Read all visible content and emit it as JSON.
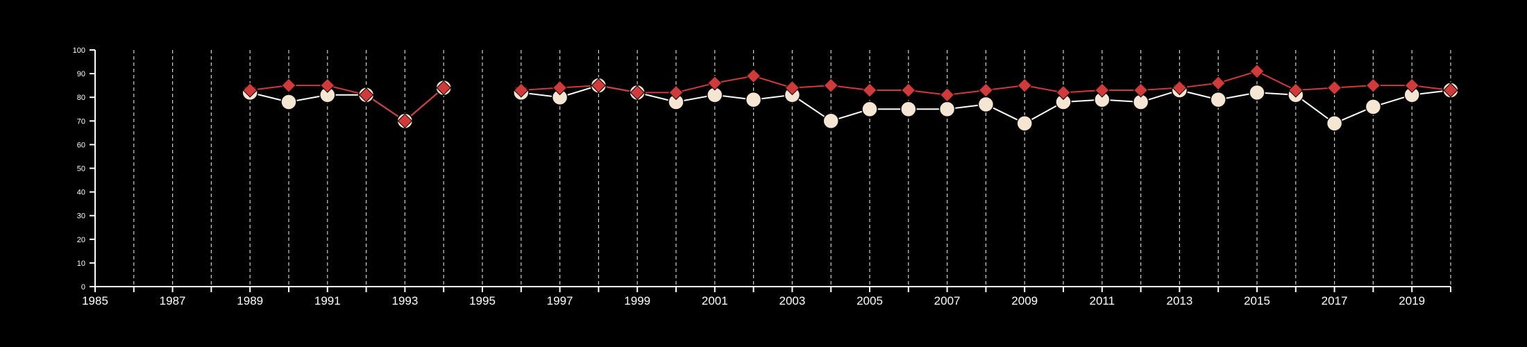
{
  "chart_data": {
    "type": "line",
    "title": "",
    "xlabel": "",
    "ylabel": "",
    "xlim": [
      1985,
      2020
    ],
    "ylim": [
      0,
      100
    ],
    "x_ticks": [
      1985,
      1987,
      1989,
      1991,
      1993,
      1995,
      1997,
      1999,
      2001,
      2003,
      2005,
      2007,
      2009,
      2011,
      2013,
      2015,
      2017,
      2019
    ],
    "x_tick_labels": [
      "1985",
      "1987",
      "1989",
      "1991",
      "1993",
      "1995",
      "1997",
      "1999",
      "2001",
      "2003",
      "2005",
      "2007",
      "2009",
      "2011",
      "2013",
      "2015",
      "2017",
      "2019"
    ],
    "y_ticks": [
      0,
      10,
      20,
      30,
      40,
      50,
      60,
      70,
      80,
      90,
      100
    ],
    "y_tick_labels": [
      "0",
      "10",
      "20",
      "30",
      "40",
      "50",
      "60",
      "70",
      "80",
      "90",
      "100"
    ],
    "vertical_dashed_gridlines_every_year": true,
    "legend": false,
    "series": [
      {
        "marker": "circle",
        "color": "#f5e6d3",
        "line_color": "#ffffff",
        "points": [
          {
            "x": 1989,
            "y": 82
          },
          {
            "x": 1990,
            "y": 78
          },
          {
            "x": 1991,
            "y": 81
          },
          {
            "x": 1992,
            "y": 81
          },
          {
            "x": 1993,
            "y": 70
          },
          {
            "x": 1994,
            "y": 84
          },
          {
            "x": 1996,
            "y": 82
          },
          {
            "x": 1997,
            "y": 80
          },
          {
            "x": 1998,
            "y": 85
          },
          {
            "x": 1999,
            "y": 82
          },
          {
            "x": 2000,
            "y": 78
          },
          {
            "x": 2001,
            "y": 81
          },
          {
            "x": 2002,
            "y": 79
          },
          {
            "x": 2003,
            "y": 81
          },
          {
            "x": 2004,
            "y": 70
          },
          {
            "x": 2005,
            "y": 75
          },
          {
            "x": 2006,
            "y": 75
          },
          {
            "x": 2007,
            "y": 75
          },
          {
            "x": 2008,
            "y": 77
          },
          {
            "x": 2009,
            "y": 69
          },
          {
            "x": 2010,
            "y": 78
          },
          {
            "x": 2011,
            "y": 79
          },
          {
            "x": 2012,
            "y": 78
          },
          {
            "x": 2013,
            "y": 83
          },
          {
            "x": 2014,
            "y": 79
          },
          {
            "x": 2015,
            "y": 82
          },
          {
            "x": 2016,
            "y": 81
          },
          {
            "x": 2017,
            "y": 69
          },
          {
            "x": 2018,
            "y": 76
          },
          {
            "x": 2019,
            "y": 81
          },
          {
            "x": 2020,
            "y": 83
          }
        ]
      },
      {
        "marker": "diamond",
        "color": "#d03a3a",
        "line_color": "#d03a3a",
        "points": [
          {
            "x": 1989,
            "y": 83
          },
          {
            "x": 1990,
            "y": 85
          },
          {
            "x": 1991,
            "y": 85
          },
          {
            "x": 1992,
            "y": 81
          },
          {
            "x": 1993,
            "y": 70
          },
          {
            "x": 1994,
            "y": 84
          },
          {
            "x": 1996,
            "y": 83
          },
          {
            "x": 1997,
            "y": 84
          },
          {
            "x": 1998,
            "y": 85
          },
          {
            "x": 1999,
            "y": 82
          },
          {
            "x": 2000,
            "y": 82
          },
          {
            "x": 2001,
            "y": 86
          },
          {
            "x": 2002,
            "y": 89
          },
          {
            "x": 2003,
            "y": 84
          },
          {
            "x": 2004,
            "y": 85
          },
          {
            "x": 2005,
            "y": 83
          },
          {
            "x": 2006,
            "y": 83
          },
          {
            "x": 2007,
            "y": 81
          },
          {
            "x": 2008,
            "y": 83
          },
          {
            "x": 2009,
            "y": 85
          },
          {
            "x": 2010,
            "y": 82
          },
          {
            "x": 2011,
            "y": 83
          },
          {
            "x": 2012,
            "y": 83
          },
          {
            "x": 2013,
            "y": 84
          },
          {
            "x": 2014,
            "y": 86
          },
          {
            "x": 2015,
            "y": 91
          },
          {
            "x": 2016,
            "y": 83
          },
          {
            "x": 2017,
            "y": 84
          },
          {
            "x": 2018,
            "y": 85
          },
          {
            "x": 2019,
            "y": 85
          },
          {
            "x": 2020,
            "y": 83
          }
        ]
      }
    ]
  }
}
